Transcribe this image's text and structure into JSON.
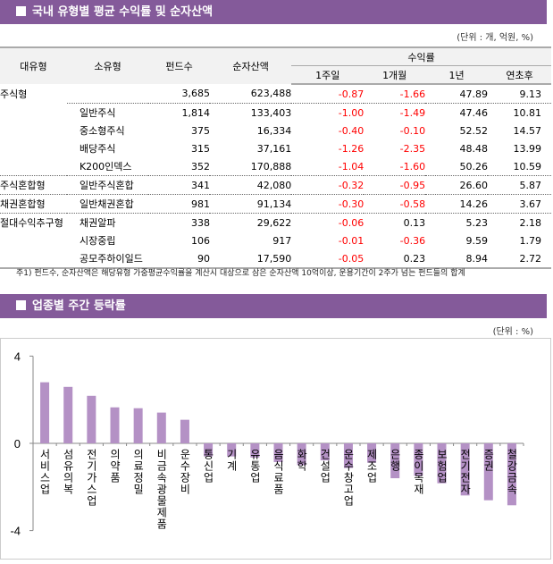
{
  "section1": {
    "title": "국내 유형별 평균 수익률 및 순자산액",
    "unit": "(단위 : 개, 억원, %)",
    "headers": {
      "major": "대유형",
      "minor": "소유형",
      "funds": "펀드수",
      "assets": "순자산액",
      "returns": "수익률",
      "w1": "1주일",
      "m1": "1개월",
      "y1": "1년",
      "ytd": "연초후"
    },
    "rows": [
      {
        "major": "주식형",
        "minor": "",
        "funds": "3,685",
        "assets": "623,488",
        "w1": "-0.87",
        "m1": "-1.66",
        "y1": "47.89",
        "ytd": "9.13"
      },
      {
        "major": "",
        "minor": "일반주식",
        "funds": "1,814",
        "assets": "133,403",
        "w1": "-1.00",
        "m1": "-1.49",
        "y1": "47.46",
        "ytd": "10.81"
      },
      {
        "major": "",
        "minor": "중소형주식",
        "funds": "375",
        "assets": "16,334",
        "w1": "-0.40",
        "m1": "-0.10",
        "y1": "52.52",
        "ytd": "14.57"
      },
      {
        "major": "",
        "minor": "배당주식",
        "funds": "315",
        "assets": "37,161",
        "w1": "-1.26",
        "m1": "-2.35",
        "y1": "48.48",
        "ytd": "13.99"
      },
      {
        "major": "",
        "minor": "K200인덱스",
        "funds": "352",
        "assets": "170,888",
        "w1": "-1.04",
        "m1": "-1.60",
        "y1": "50.26",
        "ytd": "10.59"
      },
      {
        "major": "주식혼합형",
        "minor": "일반주식혼합",
        "funds": "341",
        "assets": "42,080",
        "w1": "-0.32",
        "m1": "-0.95",
        "y1": "26.60",
        "ytd": "5.87"
      },
      {
        "major": "채권혼합형",
        "minor": "일반채권혼합",
        "funds": "981",
        "assets": "91,134",
        "w1": "-0.30",
        "m1": "-0.58",
        "y1": "14.26",
        "ytd": "3.67"
      },
      {
        "major": "절대수익추구형",
        "minor": "채권알파",
        "funds": "338",
        "assets": "29,622",
        "w1": "-0.06",
        "m1": "0.13",
        "y1": "5.23",
        "ytd": "2.18"
      },
      {
        "major": "",
        "minor": "시장중립",
        "funds": "106",
        "assets": "917",
        "w1": "-0.01",
        "m1": "-0.36",
        "y1": "9.59",
        "ytd": "1.79"
      },
      {
        "major": "",
        "minor": "공모주하이일드",
        "funds": "90",
        "assets": "17,590",
        "w1": "-0.05",
        "m1": "0.23",
        "y1": "8.94",
        "ytd": "2.72"
      }
    ],
    "note": "주1) 펀드수, 순자산액은 해당유형 가중평균수익률을 계산시 대상으로 삼은 순자산액 10억이상, 운용기간이 2주가 넘는 펀드들의 합계"
  },
  "section2": {
    "title": "업종별 주간 등락률",
    "unit": "(단위 : %)"
  },
  "colors": {
    "header": "#845a9a",
    "bar": "#b491c5",
    "negative_text": "#ff0000"
  },
  "chart_data": {
    "type": "bar",
    "ylim": [
      -4,
      4
    ],
    "yticks": [
      "4",
      "0",
      "-4"
    ],
    "grid": false,
    "categories": [
      "서비스업",
      "섬유의복",
      "전기가스업",
      "의약품",
      "의료정밀",
      "비금속광물제품",
      "운수장비",
      "통신업",
      "기계",
      "유통업",
      "음식료품",
      "화학",
      "건설업",
      "운수창고업",
      "제조업",
      "은행",
      "종이목재",
      "보험업",
      "전기전자",
      "증권",
      "철강금속"
    ],
    "values": [
      2.8,
      2.59,
      2.18,
      1.65,
      1.61,
      1.41,
      1.08,
      -0.6,
      -0.6,
      -0.65,
      -0.86,
      -1.0,
      -0.78,
      -1.13,
      -0.89,
      -1.6,
      -1.49,
      -1.83,
      -2.39,
      -2.61,
      -2.84
    ]
  }
}
